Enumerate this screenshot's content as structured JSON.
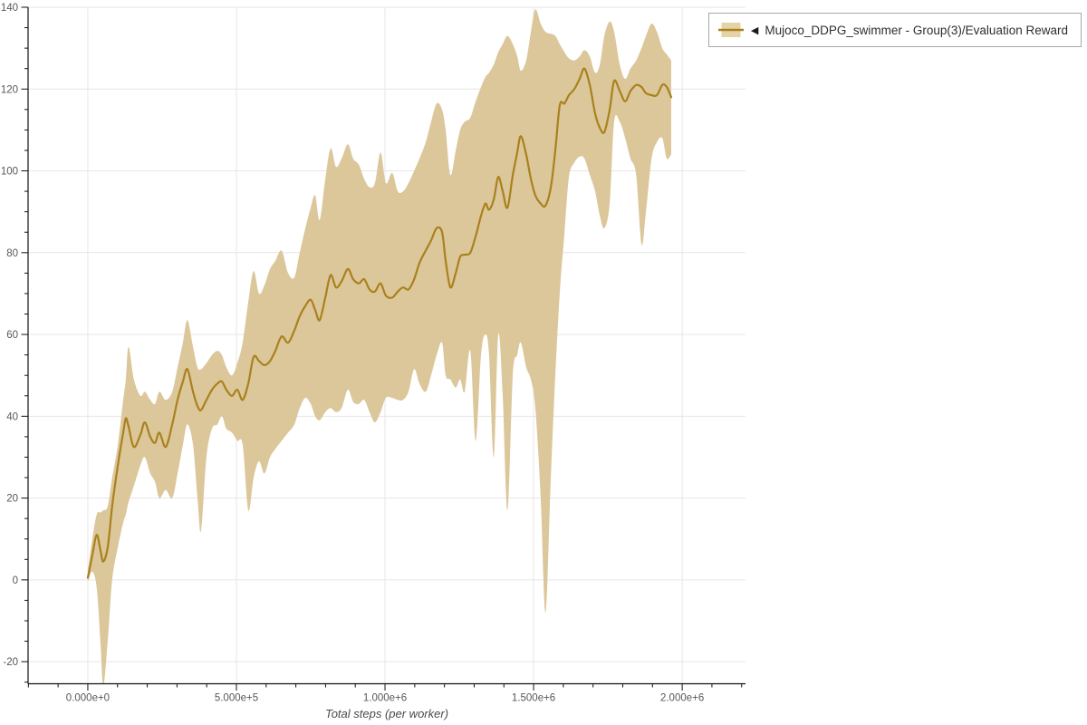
{
  "legend": {
    "collapse_icon": "◀",
    "series_label": "Mujoco_DDPG_swimmer - Group(3)/Evaluation Reward"
  },
  "colors": {
    "line": "#a9811c",
    "band": "#dcc79b",
    "legend_swatch_fill": "#e5d3a6",
    "grid": "#e6e6e6",
    "axis": "#111111",
    "tick_label": "#575757",
    "axis_title": "#4a4a4a"
  },
  "chart_data": {
    "type": "line",
    "title": "",
    "xlabel": "Total steps (per worker)",
    "ylabel": "",
    "legend_position": "top-right",
    "grid": true,
    "xlim": [
      -201000,
      2213000
    ],
    "ylim": [
      -25.4,
      140
    ],
    "x_ticks": {
      "values": [
        0,
        500000,
        1000000,
        1500000,
        2000000
      ],
      "labels": [
        "0.000e+0",
        "5.000e+5",
        "1.000e+6",
        "1.500e+6",
        "2.000e+6"
      ],
      "minor_step": 100000
    },
    "y_ticks": {
      "values": [
        -20,
        0,
        20,
        40,
        60,
        80,
        100,
        120,
        140
      ],
      "labels": [
        "-20",
        "0",
        "20",
        "40",
        "60",
        "80",
        "100",
        "120",
        "140"
      ],
      "minor_step": 5
    },
    "series_name": "Mujoco_DDPG_swimmer - Group(3)/Evaluation Reward",
    "points_format": [
      "steps",
      "mean",
      "lower",
      "upper"
    ],
    "points": [
      [
        0,
        0.5,
        -0.5,
        2
      ],
      [
        15000,
        6,
        2,
        10
      ],
      [
        30000,
        11,
        -2,
        16
      ],
      [
        43000,
        7,
        -16,
        16.5
      ],
      [
        52000,
        4.5,
        -26,
        17
      ],
      [
        67000,
        8,
        -15,
        18
      ],
      [
        82000,
        18,
        0,
        25
      ],
      [
        101000,
        28,
        8,
        33
      ],
      [
        119000,
        36,
        14,
        44
      ],
      [
        128000,
        39.5,
        16,
        49
      ],
      [
        137000,
        37.5,
        19,
        57
      ],
      [
        155000,
        32.5,
        23,
        49
      ],
      [
        177000,
        35.5,
        28,
        45
      ],
      [
        192000,
        38.5,
        30,
        46
      ],
      [
        210000,
        35,
        26,
        44
      ],
      [
        226000,
        33.5,
        24,
        43
      ],
      [
        241000,
        36,
        20,
        46
      ],
      [
        262000,
        32.5,
        22,
        44
      ],
      [
        284000,
        38,
        20,
        46
      ],
      [
        302000,
        44,
        26,
        52
      ],
      [
        320000,
        48.5,
        33,
        58
      ],
      [
        335000,
        51.5,
        38,
        63.5
      ],
      [
        354000,
        46,
        33,
        57
      ],
      [
        369000,
        42.5,
        20,
        52
      ],
      [
        381000,
        41.5,
        12,
        51.5
      ],
      [
        399000,
        44,
        30,
        53
      ],
      [
        418000,
        46.5,
        37,
        55
      ],
      [
        436000,
        48,
        38,
        56
      ],
      [
        451000,
        48.5,
        40,
        55
      ],
      [
        466000,
        46.5,
        37,
        52
      ],
      [
        485000,
        45,
        36,
        50
      ],
      [
        503000,
        46.5,
        34,
        53
      ],
      [
        521000,
        44,
        33,
        58
      ],
      [
        540000,
        48,
        17,
        68
      ],
      [
        558000,
        54.5,
        25,
        75.5
      ],
      [
        576000,
        53.5,
        29,
        70
      ],
      [
        594000,
        52.5,
        26,
        72
      ],
      [
        613000,
        53.5,
        30,
        76
      ],
      [
        631000,
        56,
        32,
        78
      ],
      [
        652000,
        59.5,
        34,
        80.5
      ],
      [
        674000,
        58,
        36,
        75
      ],
      [
        695000,
        61,
        38,
        74
      ],
      [
        713000,
        64.5,
        42,
        80
      ],
      [
        732000,
        67,
        44.5,
        86
      ],
      [
        750000,
        68.5,
        43,
        91
      ],
      [
        765000,
        66,
        40,
        94
      ],
      [
        780000,
        63.5,
        39,
        88
      ],
      [
        799000,
        69,
        41,
        98
      ],
      [
        817000,
        74.5,
        42,
        105.5
      ],
      [
        835000,
        71.5,
        41,
        101
      ],
      [
        854000,
        73,
        42,
        103
      ],
      [
        875000,
        76,
        46.5,
        106.5
      ],
      [
        893000,
        73.5,
        43.5,
        103
      ],
      [
        912000,
        72.5,
        43,
        101.5
      ],
      [
        930000,
        73.5,
        44,
        98
      ],
      [
        948000,
        71,
        41,
        96
      ],
      [
        966000,
        70.5,
        38.5,
        97
      ],
      [
        985000,
        72.5,
        41,
        104.5
      ],
      [
        1003000,
        69.5,
        44.5,
        97
      ],
      [
        1024000,
        69,
        44.5,
        99.5
      ],
      [
        1043000,
        70.5,
        44,
        95
      ],
      [
        1061000,
        71.5,
        44,
        95
      ],
      [
        1079000,
        71,
        46,
        97
      ],
      [
        1098000,
        73.5,
        51.5,
        100
      ],
      [
        1116000,
        77.5,
        48,
        103
      ],
      [
        1137000,
        80.5,
        46,
        107
      ],
      [
        1155000,
        83,
        50,
        112
      ],
      [
        1174000,
        86,
        55,
        116.5
      ],
      [
        1192000,
        85,
        58,
        115
      ],
      [
        1204000,
        78,
        50,
        110
      ],
      [
        1220000,
        71.5,
        49,
        99
      ],
      [
        1238000,
        75,
        47,
        105
      ],
      [
        1253000,
        79,
        49,
        110
      ],
      [
        1268000,
        79.5,
        46,
        112
      ],
      [
        1287000,
        80,
        56,
        113
      ],
      [
        1305000,
        84,
        34,
        117
      ],
      [
        1323000,
        89,
        55,
        120.5
      ],
      [
        1338000,
        92,
        60,
        123
      ],
      [
        1350000,
        90.5,
        55,
        124
      ],
      [
        1366000,
        93,
        30,
        126
      ],
      [
        1381000,
        98.5,
        60,
        129
      ],
      [
        1396000,
        95,
        45,
        131
      ],
      [
        1412000,
        91,
        17,
        133
      ],
      [
        1430000,
        99,
        50,
        131
      ],
      [
        1445000,
        104.5,
        55,
        128
      ],
      [
        1457000,
        108.5,
        58,
        124.5
      ],
      [
        1475000,
        104,
        52,
        127
      ],
      [
        1491000,
        98,
        49,
        134
      ],
      [
        1506000,
        94,
        42,
        139.5
      ],
      [
        1524000,
        92,
        20,
        136
      ],
      [
        1540000,
        91.5,
        -8,
        134
      ],
      [
        1558000,
        96,
        25,
        133.5
      ],
      [
        1573000,
        105,
        50,
        133
      ],
      [
        1588000,
        116,
        70,
        131
      ],
      [
        1604000,
        116.5,
        85,
        129
      ],
      [
        1619000,
        118.5,
        98.5,
        127.5
      ],
      [
        1637000,
        120,
        102,
        127
      ],
      [
        1655000,
        122.5,
        103.5,
        128
      ],
      [
        1671000,
        125,
        103,
        129.5
      ],
      [
        1689000,
        121,
        99,
        128
      ],
      [
        1707000,
        114,
        95,
        124
      ],
      [
        1723000,
        110.5,
        89,
        126
      ],
      [
        1738000,
        109.5,
        86,
        133
      ],
      [
        1756000,
        115,
        92,
        136.5
      ],
      [
        1771000,
        122,
        112,
        134
      ],
      [
        1790000,
        119.5,
        112,
        126
      ],
      [
        1808000,
        117,
        108,
        122.5
      ],
      [
        1826000,
        119.5,
        103,
        125
      ],
      [
        1845000,
        121,
        99,
        127
      ],
      [
        1863000,
        120.5,
        82,
        130
      ],
      [
        1878000,
        119,
        90,
        133
      ],
      [
        1897000,
        118.5,
        103,
        136
      ],
      [
        1915000,
        118.5,
        107,
        134
      ],
      [
        1933000,
        121,
        108,
        130
      ],
      [
        1948000,
        120.5,
        103,
        128.5
      ],
      [
        1963000,
        118,
        104,
        127
      ]
    ]
  }
}
